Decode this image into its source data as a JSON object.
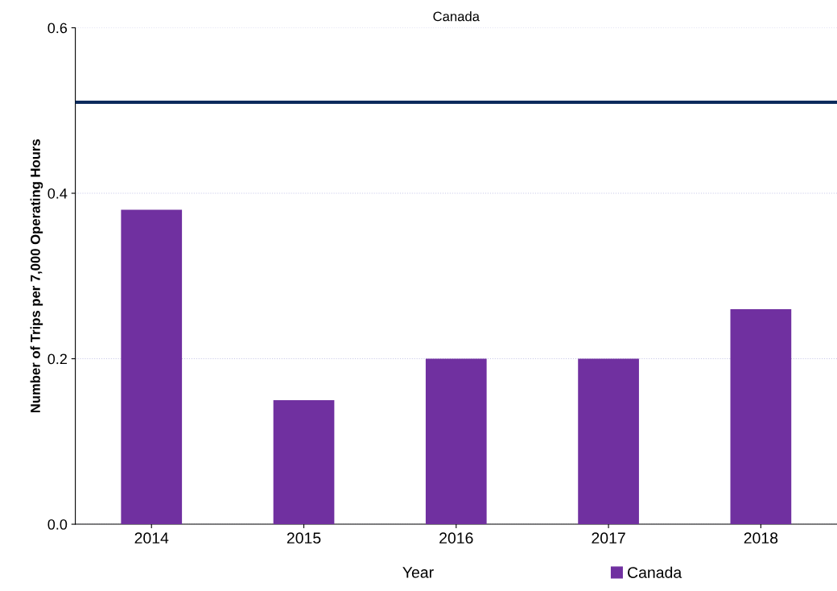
{
  "chart_data": {
    "type": "bar",
    "title": "Canada",
    "xlabel": "Year",
    "ylabel": "Number of Trips per 7,000 Operating Hours",
    "categories": [
      "2014",
      "2015",
      "2016",
      "2017",
      "2018"
    ],
    "series": [
      {
        "name": "Canada",
        "color": "#7030a0",
        "values": [
          0.38,
          0.15,
          0.2,
          0.2,
          0.26
        ]
      }
    ],
    "ylim": [
      0,
      0.6
    ],
    "yticks": [
      {
        "value": 0,
        "label": "0.0"
      },
      {
        "value": 0.2,
        "label": "0.2"
      },
      {
        "value": 0.4,
        "label": "0.4"
      },
      {
        "value": 0.6,
        "label": "0.6"
      }
    ],
    "ref_lines": [
      {
        "axis": "y",
        "value": 0.51,
        "color": "#0c2a5c",
        "line_style": "solid"
      }
    ],
    "grid": "y",
    "legend": "bottom"
  }
}
